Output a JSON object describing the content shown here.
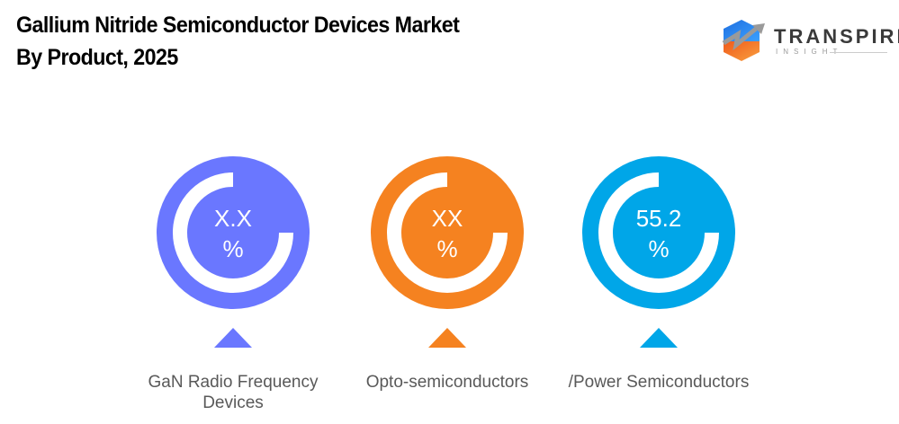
{
  "header": {
    "title_line1": "Gallium Nitride Semiconductor Devices Market",
    "title_line2": "By Product, 2025"
  },
  "logo": {
    "name": "TRANSPIRE",
    "sub": "INSIGHT"
  },
  "chart_data": {
    "type": "infographic-donut",
    "title": "Gallium Nitride Semiconductor Devices Market By Product, 2025",
    "categories": [
      "GaN Radio Frequency Devices",
      "Opto-semiconductors",
      "/Power Semiconductors"
    ],
    "items": [
      {
        "label": "GaN Radio Frequency Devices",
        "value": "X.X",
        "unit": "%",
        "color": "#6A77FF"
      },
      {
        "label": "Opto-semiconductors",
        "value": "XX",
        "unit": "%",
        "color": "#F58220"
      },
      {
        "label": "/Power Semiconductors",
        "value": "55.2",
        "unit": "%",
        "color": "#00A6E8"
      }
    ]
  }
}
